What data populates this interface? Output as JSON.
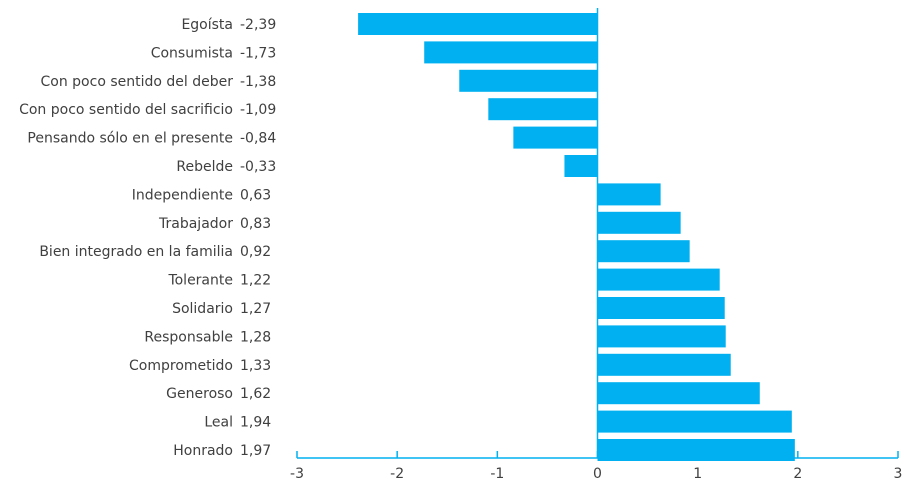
{
  "chart_data": {
    "type": "bar",
    "orientation": "horizontal",
    "title": "",
    "xlabel": "",
    "ylabel": "",
    "xlim": [
      -3,
      3
    ],
    "x_ticks": [
      -3,
      -2,
      -1,
      0,
      1,
      2,
      3
    ],
    "x_tick_labels": [
      "-3",
      "-2",
      "-1",
      "0",
      "1",
      "2",
      "3"
    ],
    "grid": false,
    "legend": "none",
    "bar_color": "#00B0F0",
    "categories": [
      "Egoísta",
      "Consumista",
      "Con poco sentido del deber",
      "Con poco sentido del sacrificio",
      "Pensando sólo en el presente",
      "Rebelde",
      "Independiente",
      "Trabajador",
      "Bien integrado en la familia",
      "Tolerante",
      "Solidario",
      "Responsable",
      "Comprometido",
      "Generoso",
      "Leal",
      "Honrado"
    ],
    "values": [
      -2.39,
      -1.73,
      -1.38,
      -1.09,
      -0.84,
      -0.33,
      0.63,
      0.83,
      0.92,
      1.22,
      1.27,
      1.28,
      1.33,
      1.62,
      1.94,
      1.97
    ],
    "value_labels": [
      "-2,39",
      "-1,73",
      "-1,38",
      "-1,09",
      "-0,84",
      "-0,33",
      "0,63",
      "0,83",
      "0,92",
      "1,22",
      "1,27",
      "1,28",
      "1,33",
      "1,62",
      "1,94",
      "1,97"
    ]
  }
}
